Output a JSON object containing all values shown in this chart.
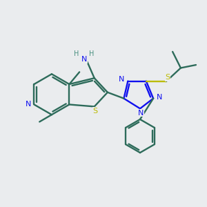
{
  "background_color": "#eaecee",
  "bond_color": "#2d6b5a",
  "n_color": "#1010ee",
  "s_color": "#bbbb00",
  "nh_color": "#4a9080",
  "figsize": [
    3.0,
    3.0
  ],
  "dpi": 100,
  "xlim": [
    0,
    10
  ],
  "ylim": [
    0,
    10
  ]
}
